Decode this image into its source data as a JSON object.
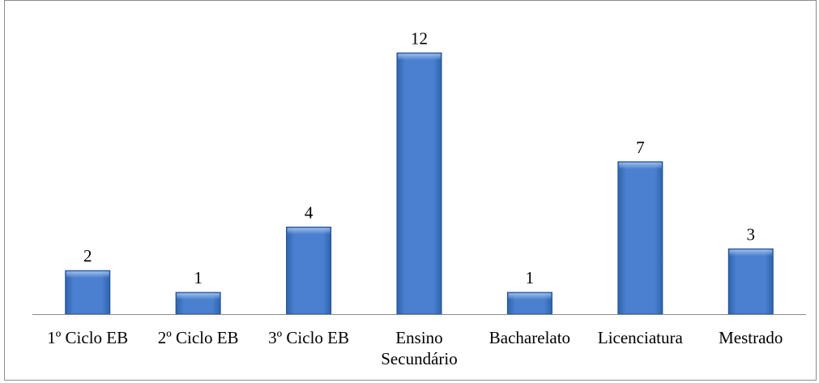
{
  "chart_data": {
    "type": "bar",
    "categories": [
      [
        "1º Ciclo EB"
      ],
      [
        "2º Ciclo EB"
      ],
      [
        "3º Ciclo EB"
      ],
      [
        "Ensino",
        "Secundário"
      ],
      [
        "Bacharelato"
      ],
      [
        "Licenciatura"
      ],
      [
        "Mestrado"
      ]
    ],
    "values": [
      2,
      1,
      4,
      12,
      1,
      7,
      3
    ],
    "title": "",
    "xlabel": "",
    "ylabel": "",
    "ylim": [
      0,
      13.5
    ],
    "grid": false,
    "legend": "none",
    "data_labels": true,
    "colors": {
      "bar_top": "#6f9ee0",
      "bar_mid": "#4a80cf",
      "bar_bottom": "#2f63ad",
      "bar_edge": "#1f4f91",
      "axis": "#8c8c8c",
      "frame": "#8c8c8c"
    }
  }
}
